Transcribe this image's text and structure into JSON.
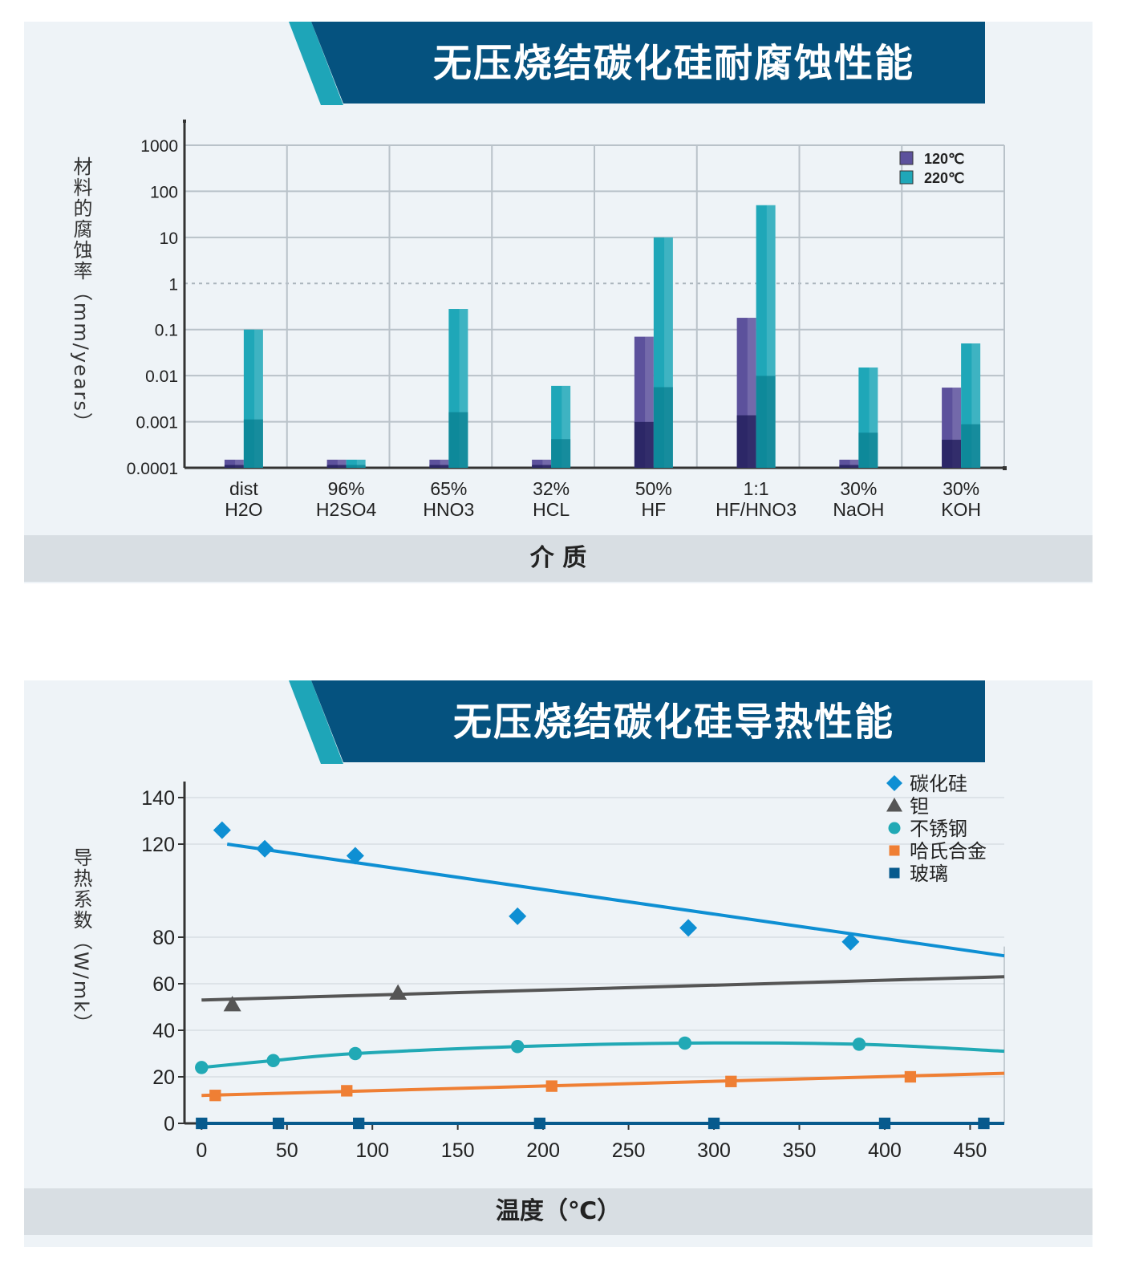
{
  "colors": {
    "banner_dark": "#05527f",
    "banner_accent": "#1ea5b8",
    "purple": "#5c519c",
    "purple_dark": "#1c1955",
    "teal": "#1fa7b8",
    "teal_dark": "#0a7f90",
    "sic": "#0e8fd3",
    "ta": "#555555",
    "ss": "#21a9b5",
    "hast": "#ef7f34",
    "glass": "#075a8d"
  },
  "charts": [
    {
      "banner_title": "无压烧结碳化硅耐腐蚀性能",
      "xlabel": "介  质",
      "ylabel": "材料的腐蚀率（mm/years）"
    },
    {
      "banner_title": "无压烧结碳化硅导热性能",
      "xlabel": "温度（℃）",
      "ylabel": "导热系数（W/mk）"
    }
  ],
  "chart_data": [
    {
      "type": "bar",
      "title": "无压烧结碳化硅耐腐蚀性能",
      "xlabel": "介 质",
      "ylabel": "材料的腐蚀率（mm/years）",
      "yscale": "log",
      "ylim": [
        0.0001,
        1000
      ],
      "yticks": [
        "0.0001",
        "0.001",
        "0.01",
        "0.1",
        "1",
        "10",
        "100",
        "1000"
      ],
      "categories": [
        [
          "dist",
          "H2O"
        ],
        [
          "96%",
          "H2SO4"
        ],
        [
          "65%",
          "HNO3"
        ],
        [
          "32%",
          "HCL"
        ],
        [
          "50%",
          "HF"
        ],
        [
          "1:1",
          "HF/HNO3"
        ],
        [
          "30%",
          "NaOH"
        ],
        [
          "30%",
          "KOH"
        ]
      ],
      "series": [
        {
          "name": "120℃",
          "values": [
            0.00015,
            0.00015,
            0.00015,
            0.00015,
            0.07,
            0.18,
            0.00015,
            0.0055
          ]
        },
        {
          "name": "220℃",
          "values": [
            0.1,
            0.00015,
            0.28,
            0.006,
            10,
            50,
            0.015,
            0.05
          ]
        }
      ],
      "legend": "top-right",
      "grid": true
    },
    {
      "type": "line",
      "title": "无压烧结碳化硅导热性能",
      "xlabel": "温度（℃）",
      "ylabel": "导热系数（W/mk）",
      "xlim": [
        -10,
        470
      ],
      "ylim": [
        0,
        140
      ],
      "xticks": [
        0,
        50,
        100,
        150,
        200,
        250,
        300,
        350,
        400,
        450
      ],
      "yticks": [
        0,
        20,
        40,
        60,
        80,
        120,
        140
      ],
      "series": [
        {
          "name": "碳化硅",
          "marker": "diamond",
          "points": [
            [
              12,
              126
            ],
            [
              37,
              118
            ],
            [
              90,
              115
            ],
            [
              185,
              89
            ],
            [
              285,
              84
            ],
            [
              380,
              78
            ]
          ],
          "fit": [
            [
              15,
              120
            ],
            [
              470,
              72
            ]
          ]
        },
        {
          "name": "钽",
          "marker": "triangle",
          "points": [
            [
              18,
              51
            ],
            [
              115,
              56
            ]
          ],
          "fit": [
            [
              0,
              53
            ],
            [
              470,
              63
            ]
          ]
        },
        {
          "name": "不锈钢",
          "marker": "circle",
          "points": [
            [
              0,
              24
            ],
            [
              42,
              27
            ],
            [
              90,
              30
            ],
            [
              185,
              33
            ],
            [
              283,
              34.5
            ],
            [
              385,
              34
            ]
          ],
          "fit": [
            [
              0,
              24
            ],
            [
              42,
              27
            ],
            [
              90,
              30
            ],
            [
              185,
              33
            ],
            [
              283,
              34.5
            ],
            [
              385,
              34
            ],
            [
              470,
              31
            ]
          ]
        },
        {
          "name": "哈氏合金",
          "marker": "square",
          "points": [
            [
              8,
              12
            ],
            [
              85,
              14
            ],
            [
              205,
              16
            ],
            [
              310,
              18
            ],
            [
              415,
              20
            ]
          ],
          "fit": [
            [
              0,
              12
            ],
            [
              470,
              21.5
            ]
          ]
        },
        {
          "name": "玻璃",
          "marker": "square",
          "points": [
            [
              0,
              0
            ],
            [
              45,
              0
            ],
            [
              92,
              0
            ],
            [
              198,
              0
            ],
            [
              300,
              0
            ],
            [
              400,
              0
            ],
            [
              458,
              0
            ]
          ],
          "fit": [
            [
              0,
              0
            ],
            [
              470,
              0
            ]
          ]
        }
      ],
      "legend": "top-right",
      "grid": true
    }
  ]
}
